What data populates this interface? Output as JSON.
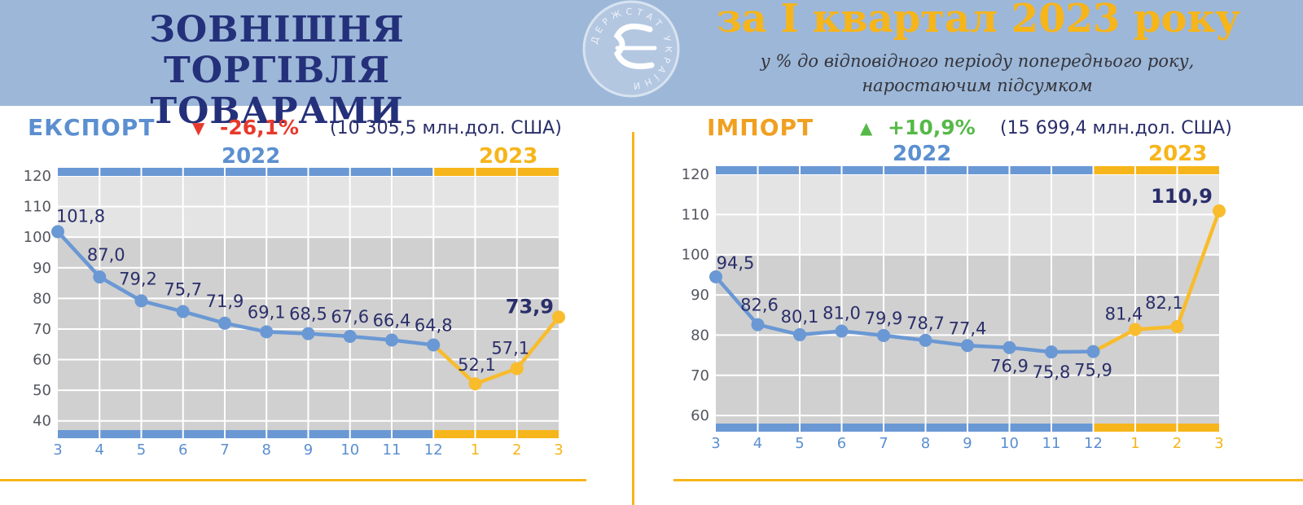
{
  "header": {
    "title_line1": "ЗОВНІШНЯ ТОРГІВЛЯ",
    "title_line2": "ТОВАРАМИ",
    "logo_text": "ДЕРЖСТАТ УКРАЇНИ",
    "period": "за І квартал 2023 року",
    "subtitle_line1": "у % до відповідного періоду попереднього року,",
    "subtitle_line2": "наростаючим підсумком"
  },
  "colors": {
    "banner": "#9db7d8",
    "title": "#24307a",
    "year2022": "#5b8fd0",
    "year2023": "#f6b51a",
    "line2022": "#6a98d4",
    "line2023": "#f8bc2c",
    "label_dark": "#2a2e6a",
    "bg_light": "#e4e4e4",
    "bg_dark": "#d0d0d0",
    "down": "#e8392c",
    "up": "#55b947",
    "import_label": "#f0a020"
  },
  "chart_data": [
    {
      "type": "line",
      "panel_label": "ЕКСПОРТ",
      "change_symbol": "▼",
      "change": "-26,1%",
      "total": "(10 305,5 млн.дол. США)",
      "years": [
        "2022",
        "2023"
      ],
      "x": [
        "3",
        "4",
        "5",
        "6",
        "7",
        "8",
        "9",
        "10",
        "11",
        "12",
        "1",
        "2",
        "3"
      ],
      "values": [
        101.8,
        87.0,
        79.2,
        75.7,
        71.9,
        69.1,
        68.5,
        67.6,
        66.4,
        64.8,
        52.1,
        57.1,
        73.9
      ],
      "labels": [
        "101,8",
        "87,0",
        "79,2",
        "75,7",
        "71,9",
        "69,1",
        "68,5",
        "67,6",
        "66,4",
        "64,8",
        "52,1",
        "57,1",
        "73,9"
      ],
      "ylim": [
        37,
        120
      ],
      "yticks": [
        40,
        50,
        60,
        70,
        80,
        90,
        100,
        110,
        120
      ],
      "split_index": 9,
      "light_above": 100
    },
    {
      "type": "line",
      "panel_label": "ІМПОРТ",
      "change_symbol": "▲",
      "change": "+10,9%",
      "total": "(15 699,4 млн.дол. США)",
      "years": [
        "2022",
        "2023"
      ],
      "x": [
        "3",
        "4",
        "5",
        "6",
        "7",
        "8",
        "9",
        "10",
        "11",
        "12",
        "1",
        "2",
        "3"
      ],
      "values": [
        94.5,
        82.6,
        80.1,
        81.0,
        79.9,
        78.7,
        77.4,
        76.9,
        75.8,
        75.9,
        81.4,
        82.1,
        110.9
      ],
      "labels": [
        "94,5",
        "82,6",
        "80,1",
        "81,0",
        "79,9",
        "78,7",
        "77,4",
        "76,9",
        "75,8",
        "75,9",
        "81,4",
        "82,1",
        "110,9"
      ],
      "ylim": [
        58,
        120
      ],
      "yticks": [
        60,
        70,
        80,
        90,
        100,
        110,
        120
      ],
      "split_index": 9,
      "light_above": 100
    }
  ]
}
